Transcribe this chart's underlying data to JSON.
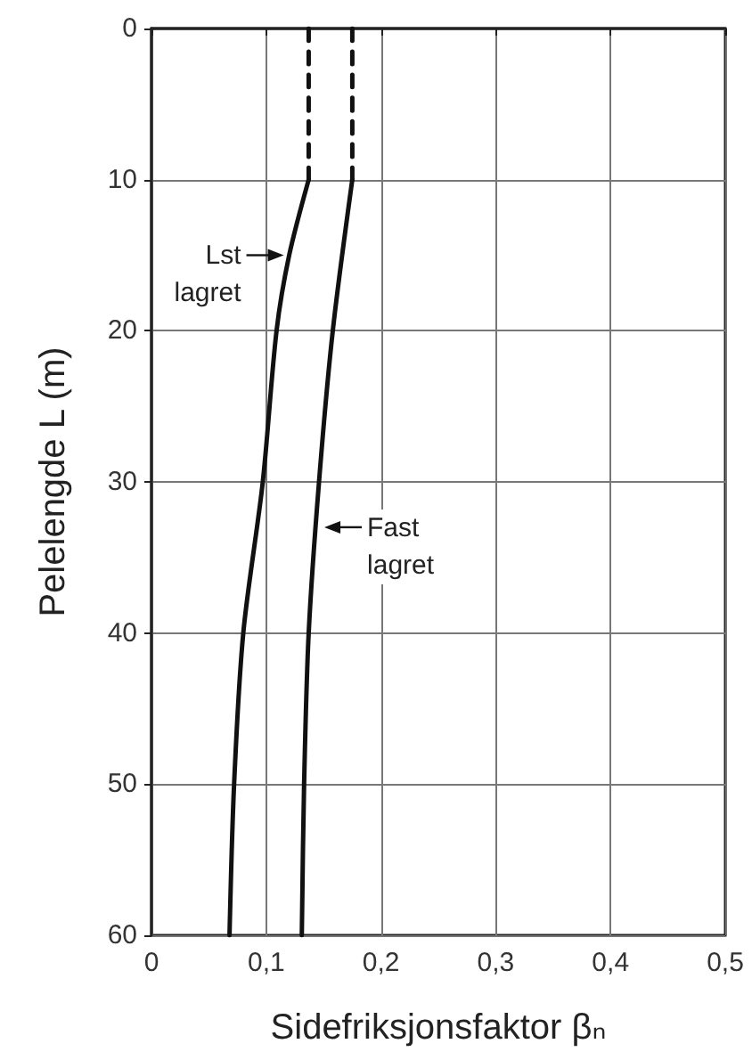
{
  "chart_data": {
    "type": "line",
    "xlabel": "Sidefriksjonsfaktor βₙ",
    "ylabel": "Pelelengde L (m)",
    "series": [
      {
        "color": "#111111",
        "x": [
          0.137,
          0.12,
          0.109,
          0.097,
          0.08,
          0.072,
          0.068
        ],
        "values": [
          10,
          15,
          20,
          30,
          40,
          50,
          60
        ],
        "line_style": "solid"
      },
      {
        "color": "#111111",
        "x": [
          0.175,
          0.158,
          0.146,
          0.137,
          0.133,
          0.131
        ],
        "values": [
          10,
          20,
          30,
          40,
          50,
          60
        ],
        "line_style": "solid"
      },
      {
        "color": "#111111",
        "x": [
          0.137,
          0.137
        ],
        "values": [
          0,
          10
        ],
        "line_style": "dashed"
      },
      {
        "color": "#111111",
        "x": [
          0.175,
          0.175
        ],
        "values": [
          0,
          10
        ],
        "line_style": "dashed"
      }
    ],
    "xlim": [
      0,
      0.5
    ],
    "xticks": [
      0,
      {
        "value": 0.1,
        "label": "0,1"
      },
      {
        "value": 0.2,
        "label": "0,2"
      },
      {
        "value": 0.3,
        "label": "0,3"
      },
      {
        "value": 0.4,
        "label": "0,4"
      },
      {
        "value": 0.5,
        "label": "0,5"
      }
    ],
    "ylim": [
      60,
      0
    ],
    "yticks": [
      0,
      10,
      20,
      30,
      40,
      50,
      60
    ],
    "annotations": [
      {
        "text": "Lst\nlagret",
        "x": 0.12,
        "y": 15
      },
      {
        "text": "Fast\nlagret",
        "x": 0.146,
        "y": 33
      }
    ],
    "grid": true,
    "marker": "none"
  }
}
